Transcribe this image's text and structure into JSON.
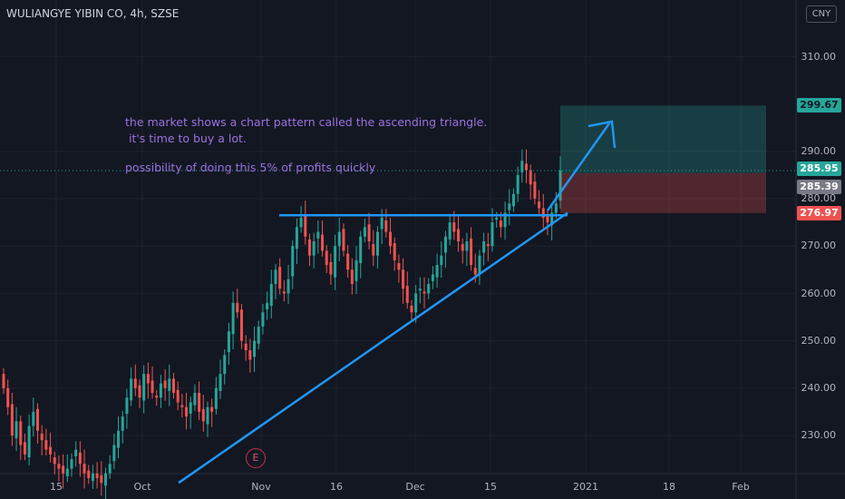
{
  "header": {
    "title": "WULIANGYE YIBIN CO, 4h, SZSE",
    "currency": "CNY"
  },
  "annotations": {
    "line1": "the market shows a chart pattern called the ascending triangle.",
    "line2": " it's time to buy a lot.",
    "line3": "possibility of doing this 5% of profits quickly",
    "event_marker": "E"
  },
  "price_badges": {
    "target": "299.67",
    "current": "285.95",
    "entry": "285.39",
    "stop": "276.97",
    "colors": {
      "target": "#26a69a",
      "current": "#26a69a",
      "entry": "#787b86",
      "stop": "#ef5350"
    }
  },
  "chart_data": {
    "type": "candlestick",
    "y_ticks": [
      "310.00",
      "290.00",
      "280.00",
      "270.00",
      "260.00",
      "250.00",
      "240.00",
      "230.00"
    ],
    "x_ticks": [
      "15",
      "Oct",
      "Nov",
      "16",
      "Dec",
      "15",
      "2021",
      "18",
      "Feb"
    ],
    "ylim": [
      220.0,
      322.0
    ],
    "grid": true,
    "colors": {
      "up": "#26a69a",
      "down": "#ef5350",
      "drawing": "#2196f3"
    },
    "closes": [
      240,
      236,
      230,
      233,
      228,
      226,
      232,
      235,
      231,
      229,
      227,
      226,
      224,
      223,
      222,
      223,
      225,
      227,
      224,
      222,
      221,
      222,
      221,
      220,
      222,
      224,
      228,
      231,
      234,
      238,
      242,
      240,
      238,
      243,
      241,
      239,
      238,
      241,
      240,
      242,
      239,
      237,
      236,
      234,
      237,
      239,
      235,
      233,
      236,
      235,
      240,
      243,
      247,
      252,
      258,
      256,
      250,
      248,
      246,
      250,
      253,
      256,
      258,
      262,
      265,
      261,
      260,
      263,
      270,
      274,
      276,
      272,
      268,
      271,
      273,
      269,
      266,
      264,
      270,
      273,
      269,
      265,
      262,
      267,
      272,
      274,
      271,
      268,
      273,
      276,
      273,
      270,
      267,
      265,
      261,
      258,
      256,
      260,
      261,
      260,
      262,
      264,
      266,
      268,
      272,
      275,
      273,
      271,
      269,
      271,
      266,
      264,
      268,
      271,
      270,
      275,
      276,
      274,
      277,
      279,
      281,
      285,
      288,
      286,
      283,
      280,
      278,
      276,
      275,
      277,
      279,
      285.95
    ],
    "drawings": {
      "resistance_level": 276.5,
      "trendline_from_price": 220.0,
      "trendline_to_price": 277.0,
      "long_position": {
        "entry": 285.39,
        "target": 299.67,
        "stop": 276.97
      }
    }
  }
}
